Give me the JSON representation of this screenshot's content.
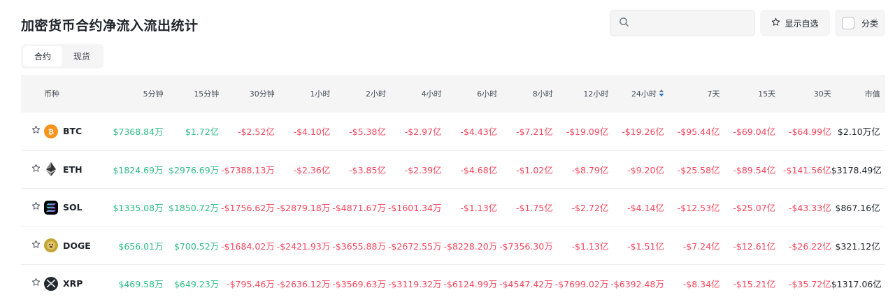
{
  "header": {
    "title": "加密货币合约净流入流出统计",
    "search_placeholder": "",
    "favorites_label": "显示自选",
    "category_label": "分类"
  },
  "tabs": [
    {
      "label": "合约",
      "active": true
    },
    {
      "label": "现货",
      "active": false
    }
  ],
  "table": {
    "columns": [
      "币种",
      "5分钟",
      "15分钟",
      "30分钟",
      "1小时",
      "2小时",
      "4小时",
      "6小时",
      "8小时",
      "12小时",
      "24小时",
      "7天",
      "15天",
      "30天",
      "市值"
    ],
    "sorted_column": "24小时",
    "rows": [
      {
        "symbol": "BTC",
        "icon": "bitcoin-icon",
        "values": [
          "$7368.84万",
          "$1.72亿",
          "-$2.52亿",
          "-$4.10亿",
          "-$5.38亿",
          "-$2.97亿",
          "-$4.43亿",
          "-$7.21亿",
          "-$19.09亿",
          "-$19.26亿",
          "-$95.44亿",
          "-$69.04亿",
          "-$64.99亿",
          "$2.10万亿"
        ]
      },
      {
        "symbol": "ETH",
        "icon": "ethereum-icon",
        "values": [
          "$1824.69万",
          "$2976.69万",
          "-$7388.13万",
          "-$2.36亿",
          "-$3.85亿",
          "-$2.39亿",
          "-$4.68亿",
          "-$1.02亿",
          "-$8.79亿",
          "-$9.20亿",
          "-$25.58亿",
          "-$89.54亿",
          "-$141.56亿",
          "$3178.49亿"
        ]
      },
      {
        "symbol": "SOL",
        "icon": "solana-icon",
        "values": [
          "$1335.08万",
          "$1850.72万",
          "-$1756.62万",
          "-$2879.18万",
          "-$4871.67万",
          "-$1601.34万",
          "-$1.13亿",
          "-$1.75亿",
          "-$2.72亿",
          "-$4.14亿",
          "-$12.53亿",
          "-$25.07亿",
          "-$43.33亿",
          "$867.16亿"
        ]
      },
      {
        "symbol": "DOGE",
        "icon": "dogecoin-icon",
        "values": [
          "$656.01万",
          "$700.52万",
          "-$1684.02万",
          "-$2421.93万",
          "-$3655.88万",
          "-$2672.55万",
          "-$8228.20万",
          "-$7356.30万",
          "-$1.13亿",
          "-$1.51亿",
          "-$7.24亿",
          "-$12.61亿",
          "-$26.22亿",
          "$321.12亿"
        ]
      },
      {
        "symbol": "XRP",
        "icon": "xrp-icon",
        "values": [
          "$469.58万",
          "$649.23万",
          "-$795.46万",
          "-$2636.12万",
          "-$3569.63万",
          "-$3119.32万",
          "-$6124.99万",
          "-$4547.42万",
          "-$7699.02万",
          "-$6392.48万",
          "-$8.34亿",
          "-$15.21亿",
          "-$35.72亿",
          "$1317.06亿"
        ]
      }
    ]
  },
  "colors": {
    "positive": "#2ebd85",
    "negative": "#f6465d",
    "text": "#1e2329"
  }
}
